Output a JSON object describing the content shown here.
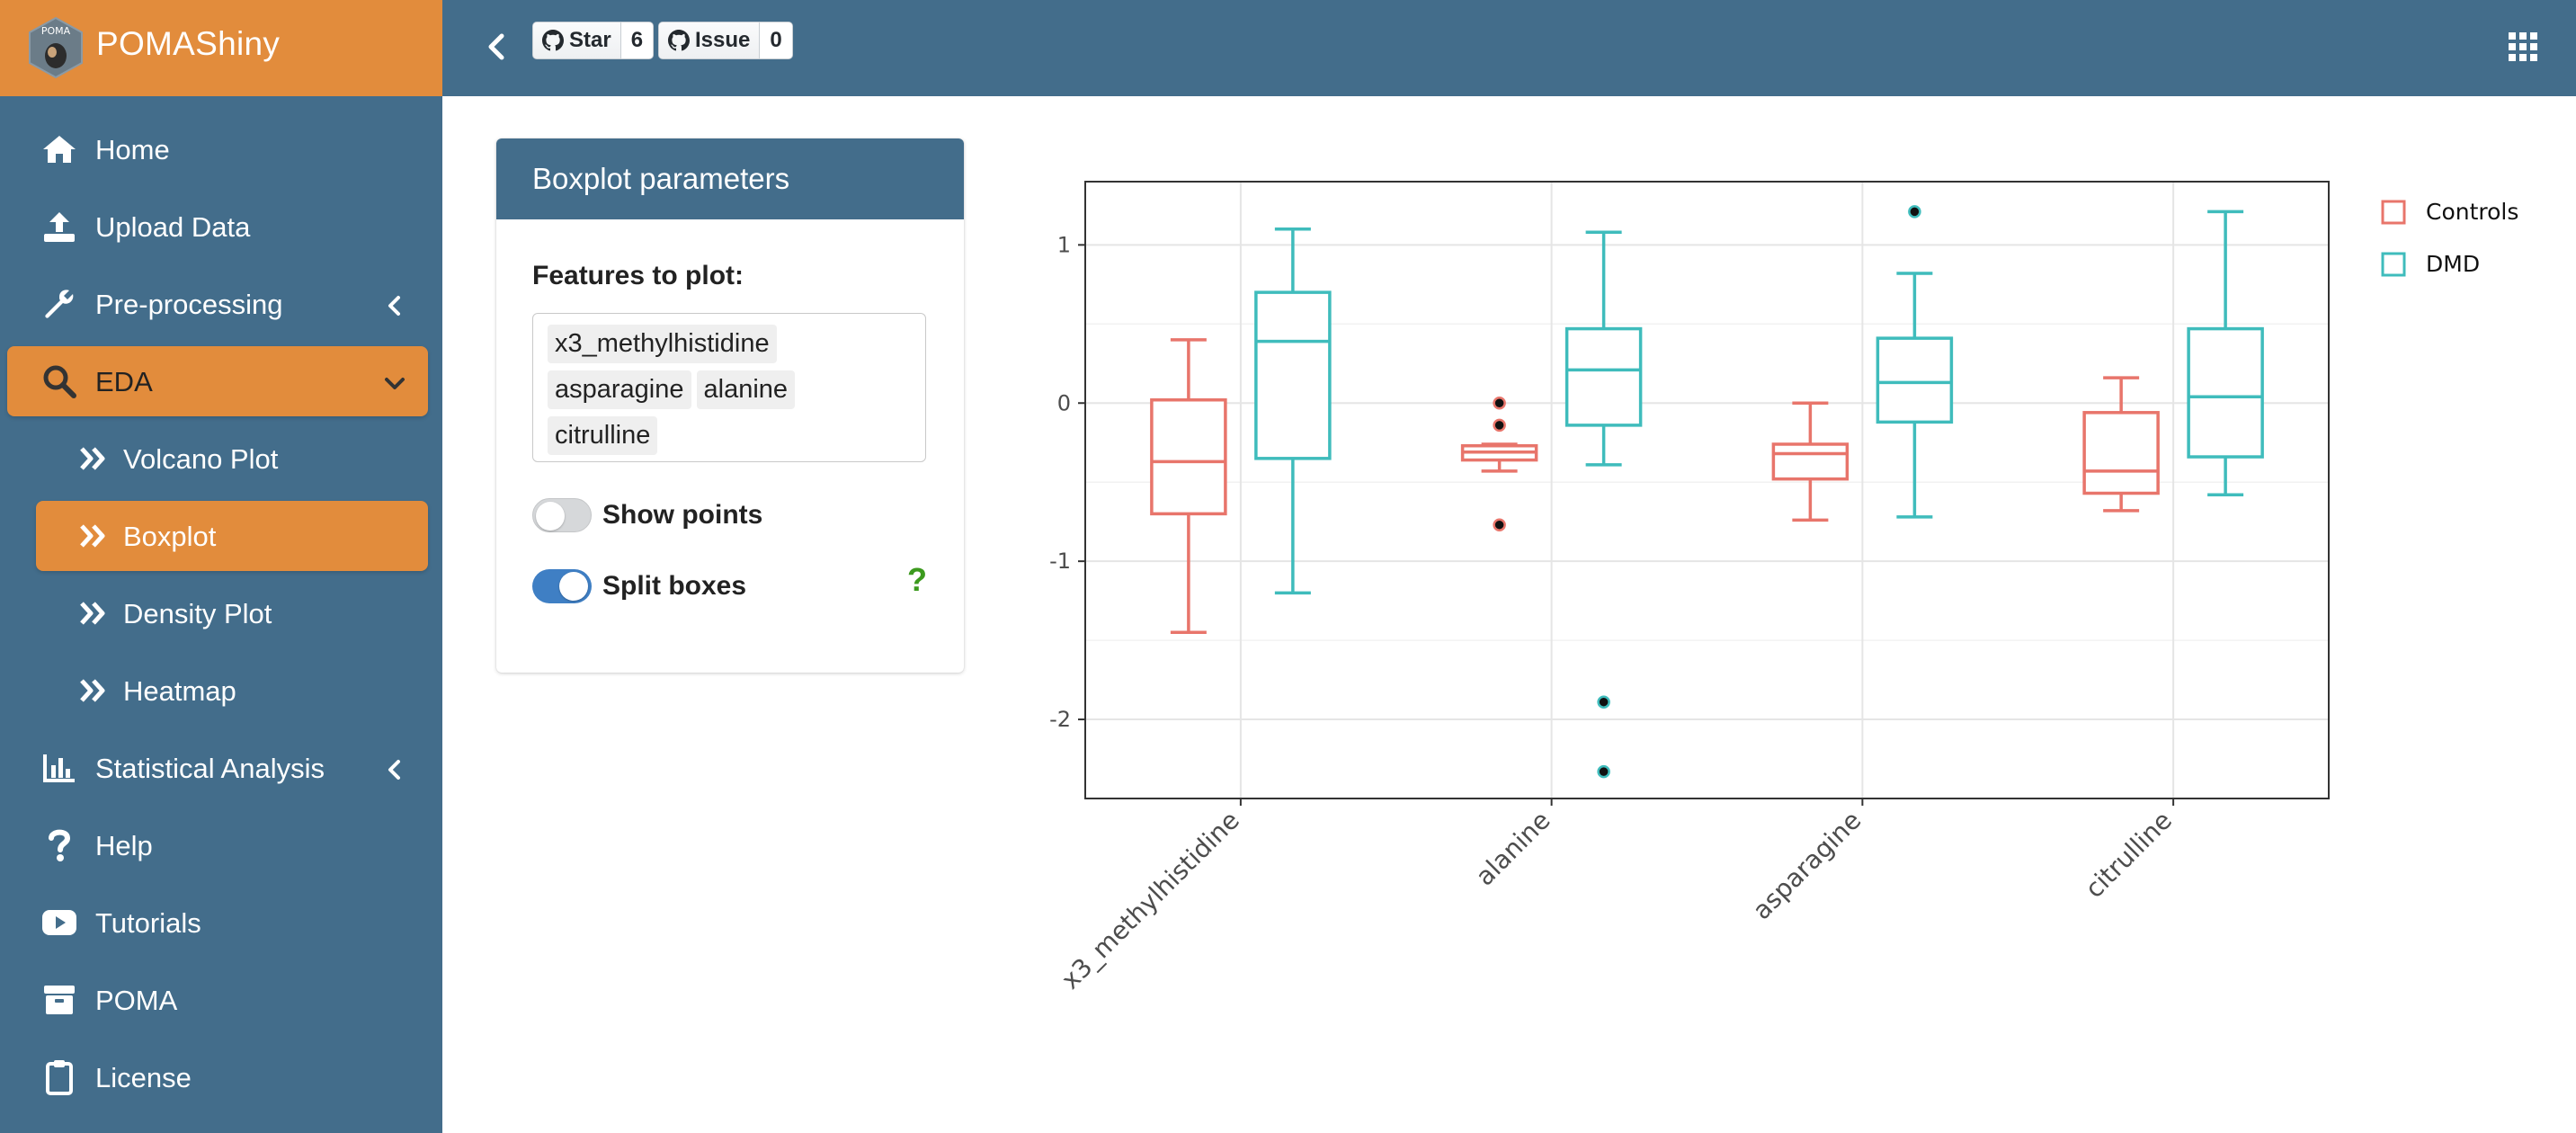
{
  "app": {
    "title": "POMAShiny",
    "logo_text": "POMA"
  },
  "sidebar": {
    "items": [
      {
        "id": "home",
        "label": "Home",
        "icon": "home-icon"
      },
      {
        "id": "upload",
        "label": "Upload Data",
        "icon": "upload-icon"
      },
      {
        "id": "preproc",
        "label": "Pre-processing",
        "icon": "wrench-icon",
        "arrow": "chevron-left-icon"
      },
      {
        "id": "eda",
        "label": "EDA",
        "icon": "search-icon",
        "arrow": "chevron-down-icon",
        "active": true
      },
      {
        "id": "volcano",
        "label": "Volcano Plot",
        "icon": "double-chevron-right-icon",
        "sub": true
      },
      {
        "id": "boxplot",
        "label": "Boxplot",
        "icon": "double-chevron-right-icon",
        "sub": true,
        "active": true
      },
      {
        "id": "density",
        "label": "Density Plot",
        "icon": "double-chevron-right-icon",
        "sub": true
      },
      {
        "id": "heatmap",
        "label": "Heatmap",
        "icon": "double-chevron-right-icon",
        "sub": true
      },
      {
        "id": "stats",
        "label": "Statistical Analysis",
        "icon": "bar-chart-icon",
        "arrow": "chevron-left-icon"
      },
      {
        "id": "help",
        "label": "Help",
        "icon": "question-icon"
      },
      {
        "id": "tutorials",
        "label": "Tutorials",
        "icon": "youtube-icon"
      },
      {
        "id": "poma",
        "label": "POMA",
        "icon": "box-icon"
      },
      {
        "id": "license",
        "label": "License",
        "icon": "clipboard-icon"
      }
    ]
  },
  "header": {
    "star_label": "Star",
    "star_count": "6",
    "issue_label": "Issue",
    "issue_count": "0",
    "collapse_icon": "chevron-left-icon",
    "apps_icon": "grid-icon"
  },
  "panel": {
    "title": "Boxplot parameters",
    "features_label": "Features to plot:",
    "selected_features": [
      "x3_methylhistidine",
      "asparagine",
      "alanine",
      "citrulline"
    ],
    "show_points": {
      "label": "Show points",
      "checked": false
    },
    "split_boxes": {
      "label": "Split boxes",
      "checked": true
    },
    "help_icon_text": "?"
  },
  "colors": {
    "sidebar": "#436d8b",
    "accent": "#e28c3c",
    "toggle_on": "#3f7fc4",
    "controls": "#e8756b",
    "dmd": "#3fbcbc",
    "help": "#3c9a1e"
  },
  "chart_data": {
    "type": "boxplot",
    "categories": [
      "x3_methylhistidine",
      "alanine",
      "asparagine",
      "citrulline"
    ],
    "yticks": [
      1,
      0,
      -1,
      -2
    ],
    "ytick_labels": [
      "1",
      "0",
      "-1",
      "-2"
    ],
    "ylim": [
      -2.5,
      1.4
    ],
    "grid": true,
    "legend": "right",
    "series": [
      {
        "name": "Controls",
        "color": "#e8756b",
        "boxes": [
          {
            "whislo": -1.45,
            "q1": -0.7,
            "med": -0.37,
            "q3": 0.02,
            "whishi": 0.4,
            "outliers": []
          },
          {
            "whislo": -0.43,
            "q1": -0.36,
            "med": -0.31,
            "q3": -0.27,
            "whishi": -0.26,
            "outliers": [
              0.0,
              -0.14,
              -0.77
            ]
          },
          {
            "whislo": -0.74,
            "q1": -0.48,
            "med": -0.32,
            "q3": -0.26,
            "whishi": 0.0,
            "outliers": []
          },
          {
            "whislo": -0.68,
            "q1": -0.57,
            "med": -0.43,
            "q3": -0.06,
            "whishi": 0.16,
            "outliers": []
          }
        ]
      },
      {
        "name": "DMD",
        "color": "#3fbcbc",
        "boxes": [
          {
            "whislo": -1.2,
            "q1": -0.35,
            "med": 0.39,
            "q3": 0.7,
            "whishi": 1.1,
            "outliers": []
          },
          {
            "whislo": -0.39,
            "q1": -0.14,
            "med": 0.21,
            "q3": 0.47,
            "whishi": 1.08,
            "outliers": [
              -1.89,
              -2.33
            ]
          },
          {
            "whislo": -0.72,
            "q1": -0.12,
            "med": 0.13,
            "q3": 0.41,
            "whishi": 0.82,
            "outliers": [
              1.21
            ]
          },
          {
            "whislo": -0.58,
            "q1": -0.34,
            "med": 0.04,
            "q3": 0.47,
            "whishi": 1.21,
            "outliers": []
          }
        ]
      }
    ]
  }
}
